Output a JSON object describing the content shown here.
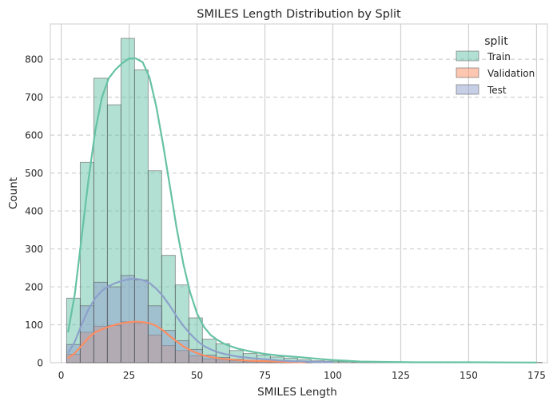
{
  "chart_data": {
    "type": "histogram",
    "title": "SMILES Length Distribution by Split",
    "xlabel": "SMILES Length",
    "ylabel": "Count",
    "xlim": [
      -4,
      179
    ],
    "ylim": [
      0,
      893
    ],
    "xticks": [
      0,
      25,
      50,
      75,
      100,
      125,
      150,
      175
    ],
    "yticks": [
      0,
      100,
      200,
      300,
      400,
      500,
      600,
      700,
      800
    ],
    "grid": true,
    "kde": true,
    "legend": {
      "title": "split",
      "position": "top-right"
    },
    "bin_start": 2,
    "bin_width": 5,
    "series": [
      {
        "name": "Train",
        "color": "#66c2a5",
        "counts": [
          170,
          528,
          750,
          680,
          855,
          772,
          506,
          283,
          205,
          118,
          62,
          50,
          32,
          24,
          20,
          15,
          12,
          8,
          5,
          4,
          3,
          2,
          2,
          2,
          1,
          1,
          1,
          1,
          1,
          1,
          1,
          1,
          1,
          1,
          1
        ],
        "kde": [
          [
            2.5,
            80
          ],
          [
            5,
            180
          ],
          [
            7.5,
            330
          ],
          [
            10,
            480
          ],
          [
            12.5,
            610
          ],
          [
            15,
            700
          ],
          [
            17.5,
            750
          ],
          [
            20,
            773
          ],
          [
            22.5,
            790
          ],
          [
            25,
            802
          ],
          [
            27.5,
            802
          ],
          [
            30,
            792
          ],
          [
            32.5,
            752
          ],
          [
            35,
            675
          ],
          [
            37.5,
            575
          ],
          [
            40,
            465
          ],
          [
            42.5,
            355
          ],
          [
            45,
            260
          ],
          [
            47.5,
            185
          ],
          [
            50,
            130
          ],
          [
            52.5,
            95
          ],
          [
            55,
            73
          ],
          [
            57.5,
            60
          ],
          [
            60,
            50
          ],
          [
            62.5,
            43
          ],
          [
            65,
            37
          ],
          [
            67.5,
            33
          ],
          [
            70,
            29
          ],
          [
            75,
            23
          ],
          [
            80,
            19
          ],
          [
            85,
            16
          ],
          [
            90,
            13
          ],
          [
            95,
            10
          ],
          [
            100,
            7
          ],
          [
            105,
            5
          ],
          [
            110,
            3
          ],
          [
            120,
            2
          ],
          [
            130,
            1
          ],
          [
            150,
            1
          ],
          [
            175,
            0.5
          ]
        ]
      },
      {
        "name": "Validation",
        "color": "#fc8d62",
        "counts": [
          22,
          80,
          96,
          98,
          108,
          105,
          73,
          45,
          32,
          18,
          10,
          7,
          5,
          3,
          3,
          2,
          1,
          1
        ],
        "kde": [
          [
            2.5,
            12
          ],
          [
            5,
            25
          ],
          [
            7.5,
            45
          ],
          [
            10,
            65
          ],
          [
            12.5,
            80
          ],
          [
            15,
            88
          ],
          [
            17.5,
            95
          ],
          [
            20,
            100
          ],
          [
            22.5,
            104
          ],
          [
            25,
            107
          ],
          [
            27.5,
            108
          ],
          [
            30,
            107
          ],
          [
            32.5,
            104
          ],
          [
            35,
            97
          ],
          [
            37.5,
            85
          ],
          [
            40,
            70
          ],
          [
            42.5,
            56
          ],
          [
            45,
            43
          ],
          [
            47.5,
            33
          ],
          [
            50,
            25
          ],
          [
            52.5,
            19
          ],
          [
            55,
            15
          ],
          [
            57.5,
            12
          ],
          [
            60,
            10
          ],
          [
            65,
            7
          ],
          [
            70,
            5
          ],
          [
            75,
            4
          ],
          [
            80,
            3
          ],
          [
            85,
            2
          ],
          [
            90,
            1
          ]
        ]
      },
      {
        "name": "Test",
        "color": "#8da0cb",
        "counts": [
          48,
          150,
          212,
          200,
          230,
          218,
          150,
          85,
          58,
          35,
          20,
          14,
          9,
          6,
          4,
          3,
          2,
          1
        ],
        "kde": [
          [
            2.5,
            25
          ],
          [
            5,
            55
          ],
          [
            7.5,
            100
          ],
          [
            10,
            140
          ],
          [
            12.5,
            170
          ],
          [
            15,
            190
          ],
          [
            17.5,
            202
          ],
          [
            20,
            210
          ],
          [
            22.5,
            216
          ],
          [
            25,
            220
          ],
          [
            27.5,
            221
          ],
          [
            30,
            218
          ],
          [
            32.5,
            210
          ],
          [
            35,
            195
          ],
          [
            37.5,
            175
          ],
          [
            40,
            150
          ],
          [
            42.5,
            122
          ],
          [
            45,
            97
          ],
          [
            47.5,
            76
          ],
          [
            50,
            58
          ],
          [
            52.5,
            44
          ],
          [
            55,
            35
          ],
          [
            57.5,
            28
          ],
          [
            60,
            23
          ],
          [
            65,
            16
          ],
          [
            70,
            12
          ],
          [
            75,
            9
          ],
          [
            80,
            6
          ],
          [
            85,
            4
          ],
          [
            90,
            3
          ],
          [
            100,
            1
          ]
        ]
      }
    ]
  }
}
